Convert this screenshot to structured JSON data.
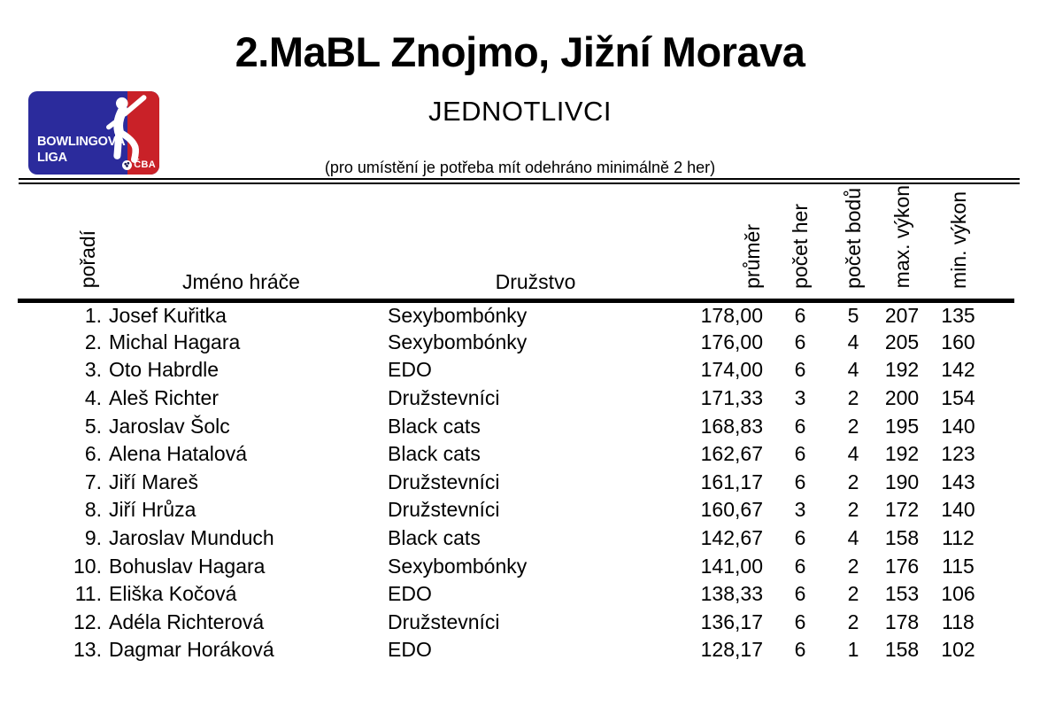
{
  "page": {
    "title": "2.MaBL Znojmo, Jižní Morava",
    "subtitle": "JEDNOTLIVCI",
    "note": "(pro umístění je potřeba mít odehráno minimálně 2 her)"
  },
  "logo": {
    "line1": "BOWLINGOVÁ",
    "line2": "LIGA",
    "badge": "ČBA",
    "blue": "#2b2b9c",
    "red": "#c92128"
  },
  "table": {
    "headers": {
      "rank": "pořadí",
      "name": "Jméno hráče",
      "team": "Družstvo",
      "average": "průměr",
      "games": "počet her",
      "points": "počet bodů",
      "max": "max. výkon",
      "min": "min. výkon"
    },
    "rows": [
      {
        "rank": "1.",
        "name": "Josef Kuřitka",
        "team": "Sexybombónky",
        "average": "178,00",
        "games": "6",
        "points": "5",
        "max": "207",
        "min": "135"
      },
      {
        "rank": "2.",
        "name": "Michal Hagara",
        "team": "Sexybombónky",
        "average": "176,00",
        "games": "6",
        "points": "4",
        "max": "205",
        "min": "160"
      },
      {
        "rank": "3.",
        "name": "Oto Habrdle",
        "team": "EDO",
        "average": "174,00",
        "games": "6",
        "points": "4",
        "max": "192",
        "min": "142"
      },
      {
        "rank": "4.",
        "name": "Aleš Richter",
        "team": "Družstevníci",
        "average": "171,33",
        "games": "3",
        "points": "2",
        "max": "200",
        "min": "154"
      },
      {
        "rank": "5.",
        "name": "Jaroslav Šolc",
        "team": "Black cats",
        "average": "168,83",
        "games": "6",
        "points": "2",
        "max": "195",
        "min": "140"
      },
      {
        "rank": "6.",
        "name": "Alena Hatalová",
        "team": "Black cats",
        "average": "162,67",
        "games": "6",
        "points": "4",
        "max": "192",
        "min": "123"
      },
      {
        "rank": "7.",
        "name": "Jiří Mareš",
        "team": "Družstevníci",
        "average": "161,17",
        "games": "6",
        "points": "2",
        "max": "190",
        "min": "143"
      },
      {
        "rank": "8.",
        "name": "Jiří Hrůza",
        "team": "Družstevníci",
        "average": "160,67",
        "games": "3",
        "points": "2",
        "max": "172",
        "min": "140"
      },
      {
        "rank": "9.",
        "name": "Jaroslav Munduch",
        "team": "Black cats",
        "average": "142,67",
        "games": "6",
        "points": "4",
        "max": "158",
        "min": "112"
      },
      {
        "rank": "10.",
        "name": "Bohuslav Hagara",
        "team": "Sexybombónky",
        "average": "141,00",
        "games": "6",
        "points": "2",
        "max": "176",
        "min": "115"
      },
      {
        "rank": "11.",
        "name": "Eliška Kočová",
        "team": "EDO",
        "average": "138,33",
        "games": "6",
        "points": "2",
        "max": "153",
        "min": "106"
      },
      {
        "rank": "12.",
        "name": "Adéla Richterová",
        "team": "Družstevníci",
        "average": "136,17",
        "games": "6",
        "points": "2",
        "max": "178",
        "min": "118"
      },
      {
        "rank": "13.",
        "name": "Dagmar Horáková",
        "team": "EDO",
        "average": "128,17",
        "games": "6",
        "points": "1",
        "max": "158",
        "min": "102"
      }
    ]
  }
}
